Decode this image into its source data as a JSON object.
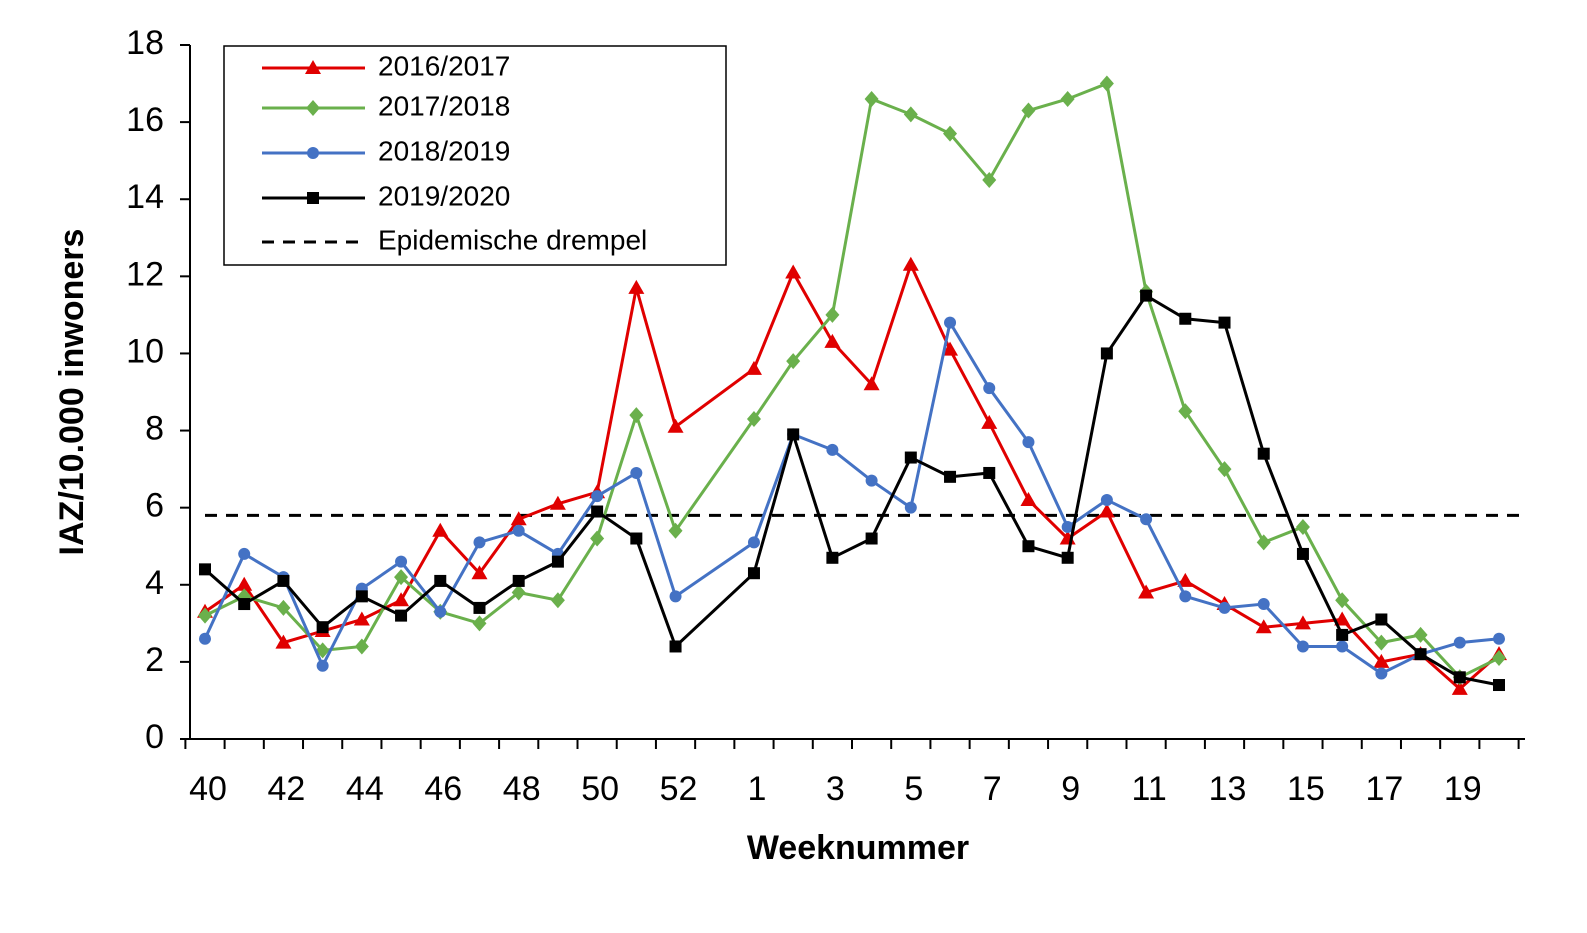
{
  "chart_data": {
    "type": "line",
    "x_label": "Weeknummer",
    "y_label": "IAZ/10.000 inwoners",
    "categories": [
      "40",
      null,
      "42",
      null,
      "44",
      null,
      "46",
      null,
      "48",
      null,
      "50",
      null,
      "52",
      null,
      "1",
      null,
      "3",
      null,
      "5",
      null,
      "7",
      null,
      "9",
      null,
      "11",
      null,
      "13",
      null,
      "15",
      null,
      "17",
      null,
      "19",
      null
    ],
    "ylim": [
      0,
      18
    ],
    "yticks": [
      0,
      2,
      4,
      6,
      8,
      10,
      12,
      14,
      16,
      18
    ],
    "span_gaps": true,
    "legend": "top-left",
    "series": [
      {
        "name": "2016/2017",
        "color": "#e00000",
        "marker": "triangle",
        "values": [
          3.3,
          4.0,
          2.5,
          2.8,
          3.1,
          3.6,
          5.4,
          4.3,
          5.7,
          6.1,
          6.4,
          11.7,
          8.1,
          null,
          9.6,
          12.1,
          10.3,
          9.2,
          12.3,
          10.1,
          8.2,
          6.2,
          5.2,
          5.9,
          3.8,
          4.1,
          3.5,
          2.9,
          3.0,
          3.1,
          2.0,
          2.2,
          1.3,
          2.2
        ]
      },
      {
        "name": "2017/2018",
        "color": "#6ab04c",
        "marker": "diamond",
        "values": [
          3.2,
          3.7,
          3.4,
          2.3,
          2.4,
          4.2,
          3.3,
          3.0,
          3.8,
          3.6,
          5.2,
          8.4,
          5.4,
          null,
          8.3,
          9.8,
          11.0,
          16.6,
          16.2,
          15.7,
          14.5,
          16.3,
          16.6,
          17.0,
          11.6,
          8.5,
          7.0,
          5.1,
          5.5,
          3.6,
          2.5,
          2.7,
          1.6,
          2.1
        ]
      },
      {
        "name": "2018/2019",
        "color": "#4472c4",
        "marker": "circle",
        "values": [
          2.6,
          4.8,
          4.2,
          1.9,
          3.9,
          4.6,
          3.3,
          5.1,
          5.4,
          4.8,
          6.3,
          6.9,
          3.7,
          null,
          5.1,
          7.9,
          7.5,
          6.7,
          6.0,
          10.8,
          9.1,
          7.7,
          5.5,
          6.2,
          5.7,
          3.7,
          3.4,
          3.5,
          2.4,
          2.4,
          1.7,
          2.2,
          2.5,
          2.6
        ]
      },
      {
        "name": "2019/2020",
        "color": "#000000",
        "marker": "square",
        "values": [
          4.4,
          3.5,
          4.1,
          2.9,
          3.7,
          3.2,
          4.1,
          3.4,
          4.1,
          4.6,
          5.9,
          5.2,
          2.4,
          null,
          4.3,
          7.9,
          4.7,
          5.2,
          7.3,
          6.8,
          6.9,
          5.0,
          4.7,
          10.0,
          11.5,
          10.9,
          10.8,
          7.4,
          4.8,
          2.7,
          3.1,
          2.2,
          1.6,
          1.4
        ]
      }
    ],
    "threshold": {
      "name": "Epidemische drempel",
      "value": 5.8,
      "color": "#000000",
      "dash": true
    }
  }
}
